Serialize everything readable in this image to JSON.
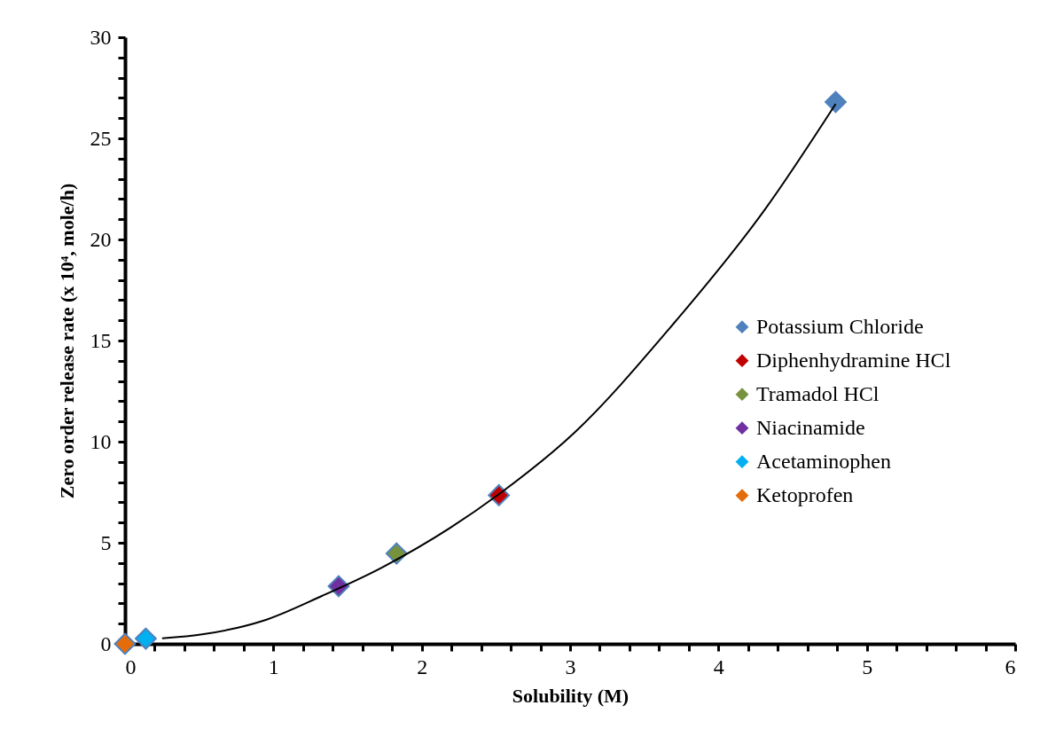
{
  "chart_data": {
    "type": "scatter",
    "xlabel": "Solubility (M)",
    "ylabel": "Zero order release rate (x 10⁴, mole/h)",
    "xlim": [
      0,
      6
    ],
    "ylim": [
      0,
      30
    ],
    "xticks": [
      0,
      {
        "value": 0.2,
        "label": null
      },
      {
        "value": 0.4,
        "label": null
      },
      {
        "value": 0.6,
        "label": null
      },
      {
        "value": 0.8,
        "label": null
      },
      1,
      {
        "value": 1.2,
        "label": null
      },
      {
        "value": 1.4,
        "label": null
      },
      {
        "value": 1.6,
        "label": null
      },
      {
        "value": 1.8,
        "label": null
      },
      2,
      {
        "value": 2.2,
        "label": null
      },
      {
        "value": 2.4,
        "label": null
      },
      {
        "value": 2.6,
        "label": null
      },
      {
        "value": 2.8,
        "label": null
      },
      3,
      {
        "value": 3.2,
        "label": null
      },
      {
        "value": 3.4,
        "label": null
      },
      {
        "value": 3.6,
        "label": null
      },
      {
        "value": 3.8,
        "label": null
      },
      4,
      {
        "value": 4.2,
        "label": null
      },
      {
        "value": 4.4,
        "label": null
      },
      {
        "value": 4.6,
        "label": null
      },
      {
        "value": 4.8,
        "label": null
      },
      5,
      {
        "value": 5.2,
        "label": null
      },
      {
        "value": 5.4,
        "label": null
      },
      {
        "value": 5.6,
        "label": null
      },
      {
        "value": 5.8,
        "label": null
      },
      6
    ],
    "yticks": [
      0,
      {
        "value": 1,
        "label": null
      },
      {
        "value": 2,
        "label": null
      },
      {
        "value": 3,
        "label": null
      },
      {
        "value": 4,
        "label": null
      },
      5,
      {
        "value": 6,
        "label": null
      },
      {
        "value": 7,
        "label": null
      },
      {
        "value": 8,
        "label": null
      },
      {
        "value": 9,
        "label": null
      },
      10,
      {
        "value": 11,
        "label": null
      },
      {
        "value": 12,
        "label": null
      },
      {
        "value": 13,
        "label": null
      },
      {
        "value": 14,
        "label": null
      },
      15,
      {
        "value": 16,
        "label": null
      },
      {
        "value": 17,
        "label": null
      },
      {
        "value": 18,
        "label": null
      },
      {
        "value": 19,
        "label": null
      },
      20,
      {
        "value": 21,
        "label": null
      },
      {
        "value": 22,
        "label": null
      },
      {
        "value": 23,
        "label": null
      },
      {
        "value": 24,
        "label": null
      },
      25,
      {
        "value": 26,
        "label": null
      },
      {
        "value": 27,
        "label": null
      },
      {
        "value": 28,
        "label": null
      },
      {
        "value": 29,
        "label": null
      },
      30
    ],
    "grid": false,
    "legend": "right",
    "series": [
      {
        "type": "line",
        "color": "#000000",
        "x": [
          0.25,
          0.53,
          0.93,
          1.33,
          1.73,
          2.52,
          3.03,
          3.67,
          4.32,
          4.79
        ],
        "values": [
          0.27,
          0.48,
          1.14,
          2.38,
          3.77,
          7.4,
          10.45,
          15.6,
          21.55,
          26.7
        ]
      },
      {
        "name": "Potassium Chloride",
        "color": "#4f81bd",
        "marker": "diamond",
        "x": [
          4.79
        ],
        "values": [
          26.8
        ]
      },
      {
        "name": "Diphenhydramine HCl",
        "color": "#c00000",
        "marker": "diamond",
        "x": [
          2.52
        ],
        "values": [
          7.35
        ]
      },
      {
        "name": "Tramadol HCl",
        "color": "#76923c",
        "marker": "diamond",
        "x": [
          1.83
        ],
        "values": [
          4.47
        ]
      },
      {
        "name": "Niacinamide",
        "color": "#7030a0",
        "marker": "diamond",
        "x": [
          1.44
        ],
        "values": [
          2.85
        ]
      },
      {
        "name": "Acetaminophen",
        "color": "#00b0f0",
        "marker": "diamond",
        "x": [
          0.14
        ],
        "values": [
          0.26
        ]
      },
      {
        "name": "Ketoprofen",
        "color": "#e46c0a",
        "marker": "diamond",
        "x": [
          0
        ],
        "values": [
          0
        ]
      }
    ]
  }
}
